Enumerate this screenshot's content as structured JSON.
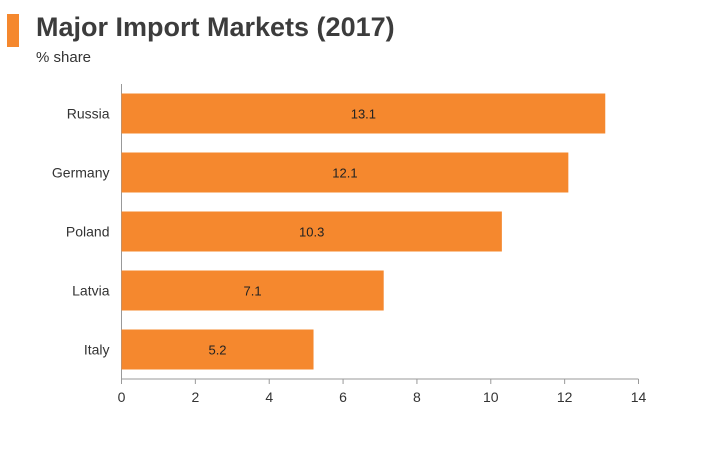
{
  "header": {
    "title": "Major Import Markets (2017)",
    "subtitle": "% share"
  },
  "colors": {
    "accent": "#f5882e",
    "bar": "#f5882e",
    "axis": "#999999",
    "text": "#333333"
  },
  "chart_data": {
    "type": "bar",
    "orientation": "horizontal",
    "title": "Major Import Markets (2017)",
    "subtitle": "% share",
    "categories": [
      "Russia",
      "Germany",
      "Poland",
      "Latvia",
      "Italy"
    ],
    "values": [
      13.1,
      12.1,
      10.3,
      7.1,
      5.2
    ],
    "data_labels": [
      "13.1",
      "12.1",
      "10.3",
      "7.1",
      "5.2"
    ],
    "xlim": [
      0,
      14
    ],
    "xticks": [
      0,
      2,
      4,
      6,
      8,
      10,
      12,
      14
    ],
    "grid": false,
    "legend": "none"
  }
}
